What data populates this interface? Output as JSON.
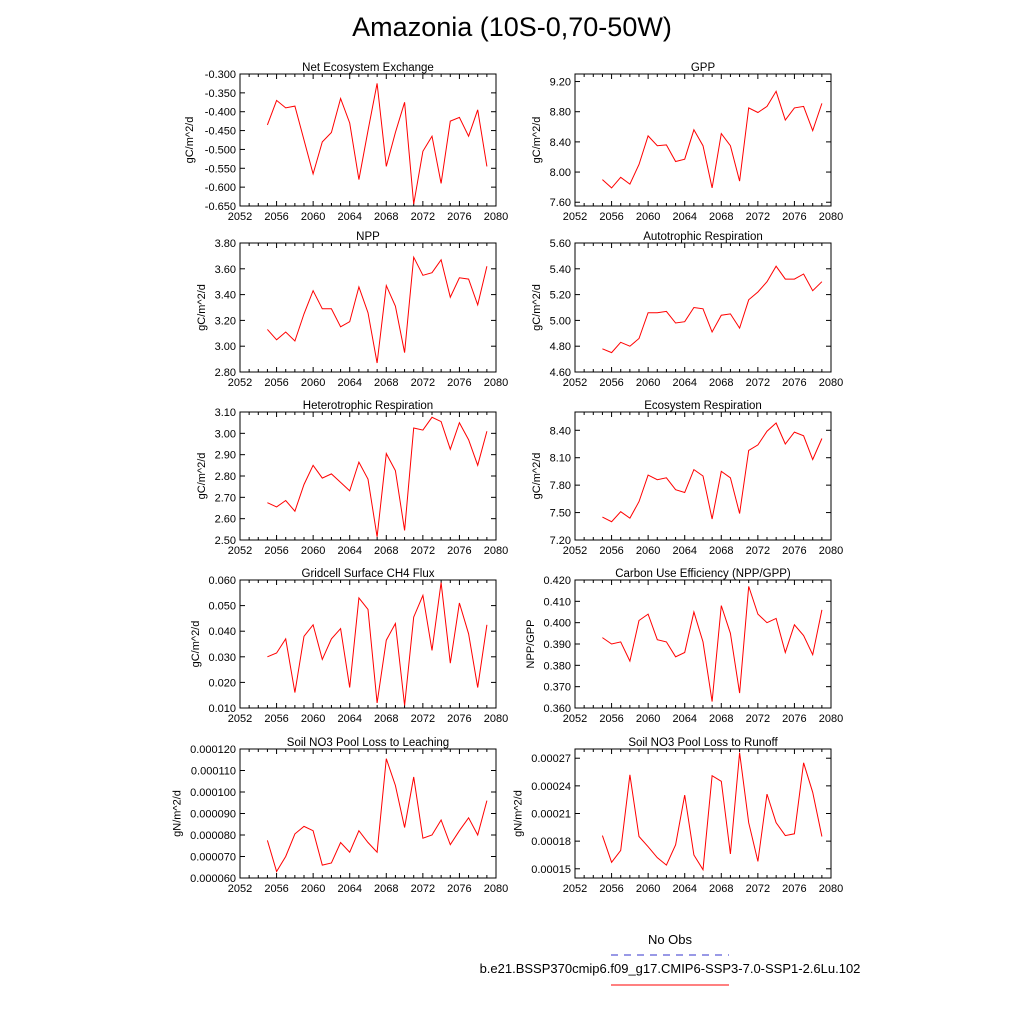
{
  "title": "Amazonia (10S-0,70-50W)",
  "legend": {
    "obs_label": "No Obs",
    "obs_color": "#3333cc",
    "run_label": "b.e21.BSSP370cmip6.f09_g17.CMIP6-SSP3-7.0-SSP1-2.6Lu.102",
    "run_color": "#ff0000"
  },
  "chart_data": [
    {
      "type": "line",
      "title": "Net Ecosystem Exchange",
      "ylabel": "gC/m^2/d",
      "xlim": [
        2052,
        2080
      ],
      "ylim": [
        -0.65,
        -0.3
      ],
      "xticks": [
        "2052",
        "2056",
        "2060",
        "2064",
        "2068",
        "2072",
        "2076",
        "2080"
      ],
      "yticks": [
        "-0.300",
        "-0.350",
        "-0.400",
        "-0.450",
        "-0.500",
        "-0.550",
        "-0.600",
        "-0.650"
      ],
      "series": [
        {
          "color": "#ff0000",
          "x": [
            2055,
            2056,
            2057,
            2058,
            2059,
            2060,
            2061,
            2062,
            2063,
            2064,
            2065,
            2066,
            2067,
            2068,
            2069,
            2070,
            2071,
            2072,
            2073,
            2074,
            2075,
            2076,
            2077,
            2078,
            2079
          ],
          "values": [
            -0.435,
            -0.37,
            -0.39,
            -0.385,
            -0.475,
            -0.565,
            -0.48,
            -0.455,
            -0.365,
            -0.43,
            -0.58,
            -0.45,
            -0.325,
            -0.545,
            -0.455,
            -0.375,
            -0.645,
            -0.505,
            -0.465,
            -0.59,
            -0.425,
            -0.415,
            -0.465,
            -0.395,
            -0.545
          ]
        }
      ]
    },
    {
      "type": "line",
      "title": "GPP",
      "ylabel": "gC/m^2/d",
      "xlim": [
        2052,
        2080
      ],
      "ylim": [
        7.55,
        9.3
      ],
      "xticks": [
        "2052",
        "2056",
        "2060",
        "2064",
        "2068",
        "2072",
        "2076",
        "2080"
      ],
      "yticks": [
        "7.60",
        "8.00",
        "8.40",
        "8.80",
        "9.20"
      ],
      "series": [
        {
          "color": "#ff0000",
          "x": [
            2055,
            2056,
            2057,
            2058,
            2059,
            2060,
            2061,
            2062,
            2063,
            2064,
            2065,
            2066,
            2067,
            2068,
            2069,
            2070,
            2071,
            2072,
            2073,
            2074,
            2075,
            2076,
            2077,
            2078,
            2079
          ],
          "values": [
            7.9,
            7.79,
            7.93,
            7.84,
            8.1,
            8.48,
            8.35,
            8.36,
            8.14,
            8.17,
            8.56,
            8.35,
            7.79,
            8.51,
            8.35,
            7.88,
            8.85,
            8.79,
            8.87,
            9.07,
            8.69,
            8.85,
            8.87,
            8.55,
            8.91
          ]
        }
      ]
    },
    {
      "type": "line",
      "title": "NPP",
      "ylabel": "gC/m^2/d",
      "xlim": [
        2052,
        2080
      ],
      "ylim": [
        2.8,
        3.8
      ],
      "xticks": [
        "2052",
        "2056",
        "2060",
        "2064",
        "2068",
        "2072",
        "2076",
        "2080"
      ],
      "yticks": [
        "2.80",
        "3.00",
        "3.20",
        "3.40",
        "3.60",
        "3.80"
      ],
      "series": [
        {
          "color": "#ff0000",
          "x": [
            2055,
            2056,
            2057,
            2058,
            2059,
            2060,
            2061,
            2062,
            2063,
            2064,
            2065,
            2066,
            2067,
            2068,
            2069,
            2070,
            2071,
            2072,
            2073,
            2074,
            2075,
            2076,
            2077,
            2078,
            2079
          ],
          "values": [
            3.13,
            3.05,
            3.11,
            3.04,
            3.25,
            3.43,
            3.29,
            3.29,
            3.15,
            3.19,
            3.46,
            3.26,
            2.87,
            3.47,
            3.31,
            2.95,
            3.69,
            3.55,
            3.57,
            3.67,
            3.38,
            3.53,
            3.52,
            3.32,
            3.62
          ]
        }
      ]
    },
    {
      "type": "line",
      "title": "Autotrophic Respiration",
      "ylabel": "gC/m^2/d",
      "xlim": [
        2052,
        2080
      ],
      "ylim": [
        4.6,
        5.6
      ],
      "xticks": [
        "2052",
        "2056",
        "2060",
        "2064",
        "2068",
        "2072",
        "2076",
        "2080"
      ],
      "yticks": [
        "4.60",
        "4.80",
        "5.00",
        "5.20",
        "5.40",
        "5.60"
      ],
      "series": [
        {
          "color": "#ff0000",
          "x": [
            2055,
            2056,
            2057,
            2058,
            2059,
            2060,
            2061,
            2062,
            2063,
            2064,
            2065,
            2066,
            2067,
            2068,
            2069,
            2070,
            2071,
            2072,
            2073,
            2074,
            2075,
            2076,
            2077,
            2078,
            2079
          ],
          "values": [
            4.78,
            4.75,
            4.83,
            4.8,
            4.86,
            5.06,
            5.06,
            5.07,
            4.98,
            4.99,
            5.1,
            5.09,
            4.91,
            5.04,
            5.05,
            4.94,
            5.16,
            5.22,
            5.3,
            5.42,
            5.32,
            5.32,
            5.36,
            5.23,
            5.3
          ]
        }
      ]
    },
    {
      "type": "line",
      "title": "Heterotrophic Respiration",
      "ylabel": "gC/m^2/d",
      "xlim": [
        2052,
        2080
      ],
      "ylim": [
        2.5,
        3.1
      ],
      "xticks": [
        "2052",
        "2056",
        "2060",
        "2064",
        "2068",
        "2072",
        "2076",
        "2080"
      ],
      "yticks": [
        "2.50",
        "2.60",
        "2.70",
        "2.80",
        "2.90",
        "3.00",
        "3.10"
      ],
      "series": [
        {
          "color": "#ff0000",
          "x": [
            2055,
            2056,
            2057,
            2058,
            2059,
            2060,
            2061,
            2062,
            2063,
            2064,
            2065,
            2066,
            2067,
            2068,
            2069,
            2070,
            2071,
            2072,
            2073,
            2074,
            2075,
            2076,
            2077,
            2078,
            2079
          ],
          "values": [
            2.675,
            2.655,
            2.685,
            2.635,
            2.76,
            2.85,
            2.79,
            2.81,
            2.77,
            2.73,
            2.865,
            2.785,
            2.515,
            2.905,
            2.825,
            2.545,
            3.025,
            3.015,
            3.075,
            3.055,
            2.925,
            3.05,
            2.97,
            2.85,
            3.01
          ]
        }
      ]
    },
    {
      "type": "line",
      "title": "Ecosystem Respiration",
      "ylabel": "gC/m^2/d",
      "xlim": [
        2052,
        2080
      ],
      "ylim": [
        7.2,
        8.6
      ],
      "xticks": [
        "2052",
        "2056",
        "2060",
        "2064",
        "2068",
        "2072",
        "2076",
        "2080"
      ],
      "yticks": [
        "7.20",
        "7.50",
        "7.80",
        "8.10",
        "8.40"
      ],
      "series": [
        {
          "color": "#ff0000",
          "x": [
            2055,
            2056,
            2057,
            2058,
            2059,
            2060,
            2061,
            2062,
            2063,
            2064,
            2065,
            2066,
            2067,
            2068,
            2069,
            2070,
            2071,
            2072,
            2073,
            2074,
            2075,
            2076,
            2077,
            2078,
            2079
          ],
          "values": [
            7.45,
            7.4,
            7.51,
            7.44,
            7.62,
            7.91,
            7.86,
            7.88,
            7.75,
            7.72,
            7.97,
            7.9,
            7.43,
            7.95,
            7.88,
            7.49,
            8.18,
            8.24,
            8.39,
            8.48,
            8.25,
            8.38,
            8.34,
            8.08,
            8.31
          ]
        }
      ]
    },
    {
      "type": "line",
      "title": "Gridcell Surface CH4 Flux",
      "ylabel": "gC/m^2/d",
      "xlim": [
        2052,
        2080
      ],
      "ylim": [
        0.01,
        0.06
      ],
      "xticks": [
        "2052",
        "2056",
        "2060",
        "2064",
        "2068",
        "2072",
        "2076",
        "2080"
      ],
      "yticks": [
        "0.010",
        "0.020",
        "0.030",
        "0.040",
        "0.050",
        "0.060"
      ],
      "series": [
        {
          "color": "#ff0000",
          "x": [
            2055,
            2056,
            2057,
            2058,
            2059,
            2060,
            2061,
            2062,
            2063,
            2064,
            2065,
            2066,
            2067,
            2068,
            2069,
            2070,
            2071,
            2072,
            2073,
            2074,
            2075,
            2076,
            2077,
            2078,
            2079
          ],
          "values": [
            0.03,
            0.0315,
            0.037,
            0.016,
            0.038,
            0.0425,
            0.029,
            0.037,
            0.041,
            0.018,
            0.053,
            0.0485,
            0.012,
            0.0365,
            0.043,
            0.011,
            0.0455,
            0.054,
            0.0325,
            0.059,
            0.0275,
            0.051,
            0.039,
            0.018,
            0.0425
          ]
        }
      ]
    },
    {
      "type": "line",
      "title": "Carbon Use Efficiency (NPP/GPP)",
      "ylabel": "NPP/GPP",
      "xlim": [
        2052,
        2080
      ],
      "ylim": [
        0.36,
        0.42
      ],
      "xticks": [
        "2052",
        "2056",
        "2060",
        "2064",
        "2068",
        "2072",
        "2076",
        "2080"
      ],
      "yticks": [
        "0.360",
        "0.370",
        "0.380",
        "0.390",
        "0.400",
        "0.410",
        "0.420"
      ],
      "series": [
        {
          "color": "#ff0000",
          "x": [
            2055,
            2056,
            2057,
            2058,
            2059,
            2060,
            2061,
            2062,
            2063,
            2064,
            2065,
            2066,
            2067,
            2068,
            2069,
            2070,
            2071,
            2072,
            2073,
            2074,
            2075,
            2076,
            2077,
            2078,
            2079
          ],
          "values": [
            0.393,
            0.39,
            0.391,
            0.382,
            0.401,
            0.404,
            0.392,
            0.391,
            0.384,
            0.386,
            0.405,
            0.391,
            0.363,
            0.408,
            0.395,
            0.367,
            0.417,
            0.404,
            0.4,
            0.402,
            0.386,
            0.399,
            0.394,
            0.385,
            0.406
          ]
        }
      ]
    },
    {
      "type": "line",
      "title": "Soil NO3 Pool Loss to Leaching",
      "ylabel": "gN/m^2/d",
      "xlim": [
        2052,
        2080
      ],
      "ylim": [
        6e-05,
        0.00012
      ],
      "xticks": [
        "2052",
        "2056",
        "2060",
        "2064",
        "2068",
        "2072",
        "2076",
        "2080"
      ],
      "yticks": [
        "0.000060",
        "0.000070",
        "0.000080",
        "0.000090",
        "0.000100",
        "0.000110",
        "0.000120"
      ],
      "series": [
        {
          "color": "#ff0000",
          "x": [
            2055,
            2056,
            2057,
            2058,
            2059,
            2060,
            2061,
            2062,
            2063,
            2064,
            2065,
            2066,
            2067,
            2068,
            2069,
            2070,
            2071,
            2072,
            2073,
            2074,
            2075,
            2076,
            2077,
            2078,
            2079
          ],
          "values": [
            7.75e-05,
            6.3e-05,
            7e-05,
            8.05e-05,
            8.4e-05,
            8.2e-05,
            6.6e-05,
            6.7e-05,
            7.65e-05,
            7.2e-05,
            8.2e-05,
            7.65e-05,
            7.2e-05,
            0.0001155,
            0.000103,
            8.35e-05,
            0.000107,
            7.85e-05,
            8e-05,
            8.7e-05,
            7.55e-05,
            8.2e-05,
            8.8e-05,
            8e-05,
            9.6e-05
          ]
        }
      ]
    },
    {
      "type": "line",
      "title": "Soil NO3 Pool Loss to Runoff",
      "ylabel": "gN/m^2/d",
      "xlim": [
        2052,
        2080
      ],
      "ylim": [
        0.00014,
        0.00028
      ],
      "xticks": [
        "2052",
        "2056",
        "2060",
        "2064",
        "2068",
        "2072",
        "2076",
        "2080"
      ],
      "yticks": [
        "0.00015",
        "0.00018",
        "0.00021",
        "0.00024",
        "0.00027"
      ],
      "series": [
        {
          "color": "#ff0000",
          "x": [
            2055,
            2056,
            2057,
            2058,
            2059,
            2060,
            2061,
            2062,
            2063,
            2064,
            2065,
            2066,
            2067,
            2068,
            2069,
            2070,
            2071,
            2072,
            2073,
            2074,
            2075,
            2076,
            2077,
            2078,
            2079
          ],
          "values": [
            0.000186,
            0.000157,
            0.00017,
            0.000252,
            0.000185,
            0.000174,
            0.000162,
            0.000154,
            0.000176,
            0.00023,
            0.000165,
            0.000149,
            0.000251,
            0.000245,
            0.000166,
            0.000276,
            0.0002,
            0.000158,
            0.000231,
            0.0002,
            0.000186,
            0.000188,
            0.000265,
            0.000233,
            0.000185
          ]
        }
      ]
    }
  ]
}
